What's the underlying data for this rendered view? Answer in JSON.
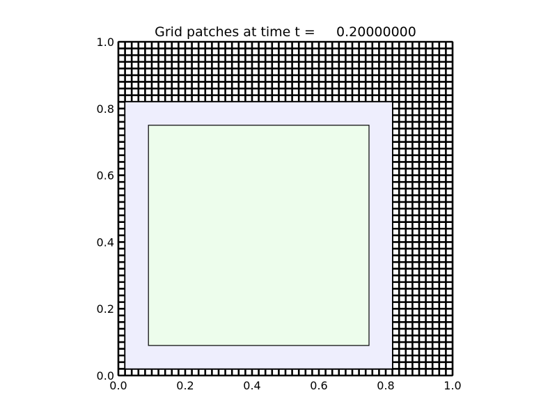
{
  "chart_data": {
    "type": "grid-patches",
    "title": "Grid patches at time t =     0.20000000",
    "xlim": [
      0.0,
      1.0
    ],
    "ylim": [
      0.0,
      1.0
    ],
    "x_ticks": [
      "0.0",
      "0.2",
      "0.4",
      "0.6",
      "0.8",
      "1.0"
    ],
    "y_ticks": [
      "0.0",
      "0.2",
      "0.4",
      "0.6",
      "0.8",
      "1.0"
    ],
    "levels": [
      {
        "level": 1,
        "x": [
          0.0,
          1.0
        ],
        "y": [
          0.0,
          1.0
        ],
        "cells": [
          50,
          50
        ],
        "fill": "#ffffff",
        "grid_lines": true
      },
      {
        "level": 2,
        "x": [
          0.02,
          0.82
        ],
        "y": [
          0.02,
          0.82
        ],
        "fill": "#eeeefd",
        "grid_lines": false
      },
      {
        "level": 3,
        "x": [
          0.09,
          0.75
        ],
        "y": [
          0.09,
          0.75
        ],
        "fill": "#edfdec",
        "grid_lines": false
      }
    ],
    "grid": false,
    "legend": "none"
  }
}
